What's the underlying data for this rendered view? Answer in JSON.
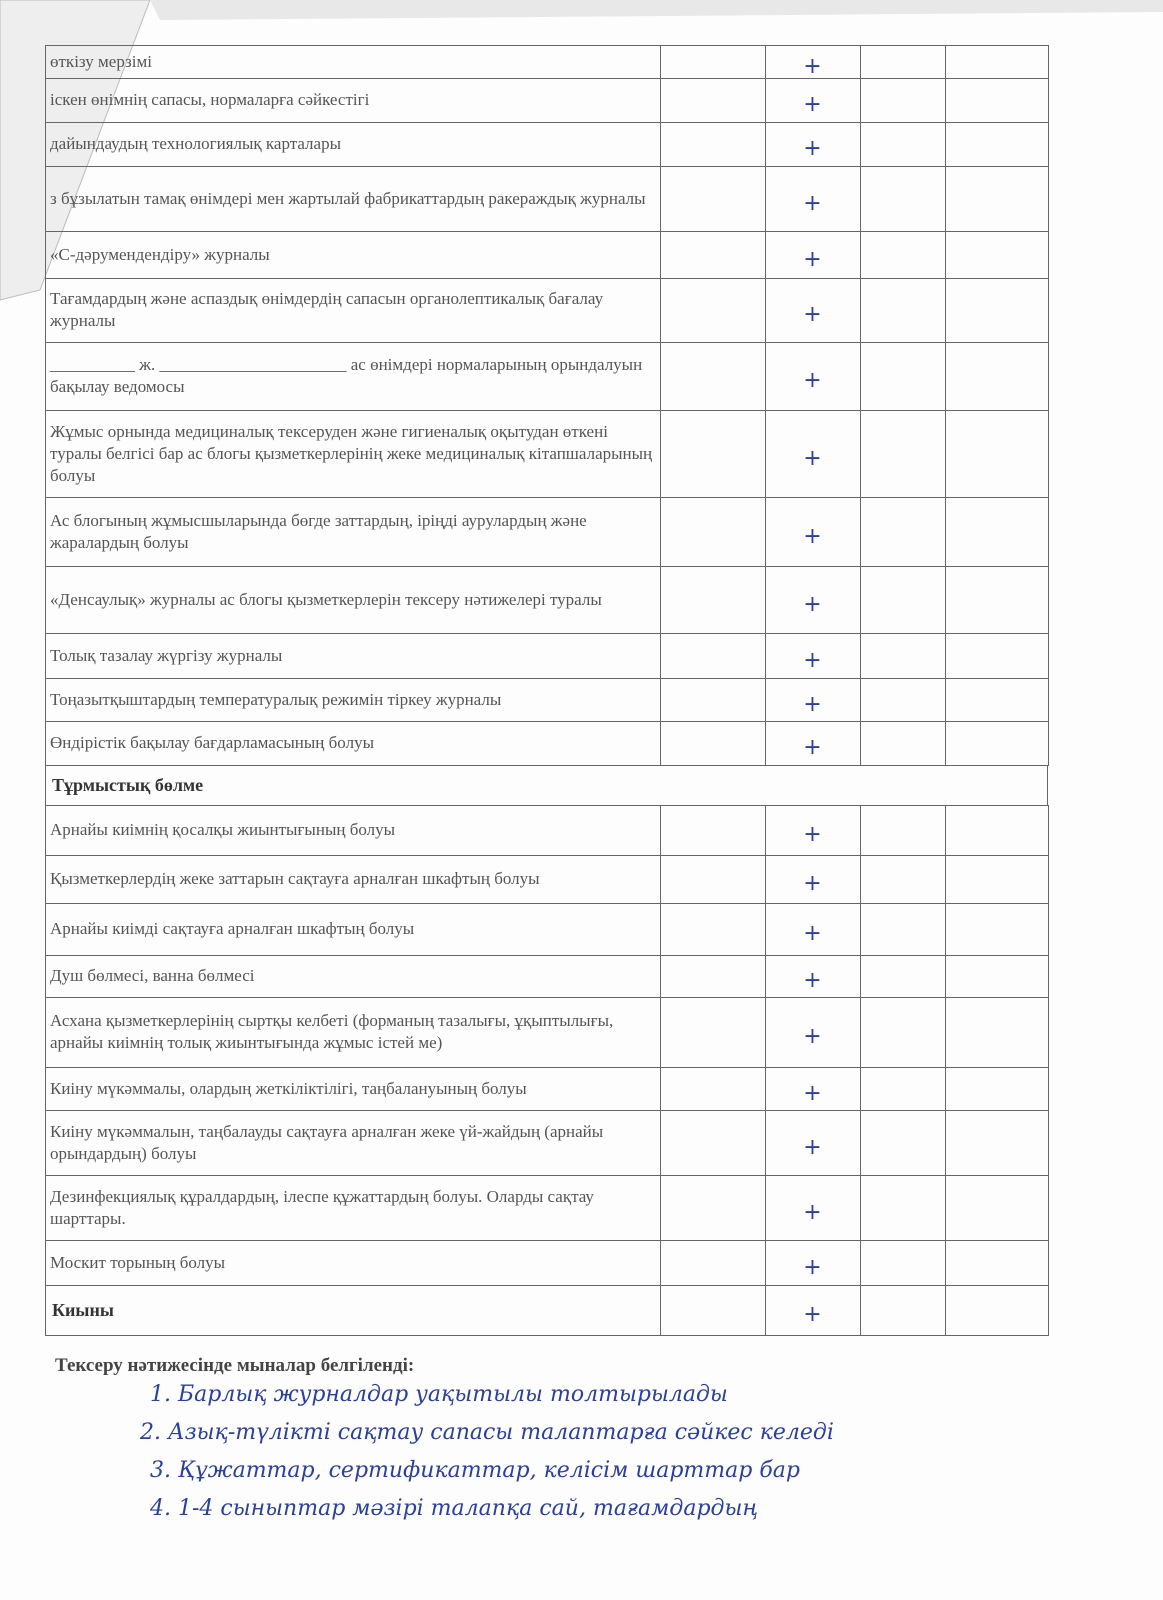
{
  "table": {
    "rows": [
      {
        "text": "өткізу мерзімі",
        "mark": "+"
      },
      {
        "text": "іскен өнімнің сапасы, нормаларға сәйкестігі",
        "mark": "+"
      },
      {
        "text": "дайындаудың технологиялық карталары",
        "mark": "+"
      },
      {
        "text": "з бұзылатын тамақ өнімдері мен жартылай фабрикаттардың ракераждық журналы",
        "mark": "+"
      },
      {
        "text": "«С-дәрумендендіру» журналы",
        "mark": "+"
      },
      {
        "text": "Тағамдардың және аспаздық өнімдердің сапасын органолептикалық бағалау журналы",
        "mark": "+"
      },
      {
        "text": "__________ ж. ______________________ ас өнімдері нормаларының орындалуын бақылау ведомосы",
        "mark": "+"
      },
      {
        "text": "Жұмыс орнында медициналық тексеруден және гигиеналық оқытудан өткені туралы белгісі бар ас блогы қызметкерлерінің жеке медициналық кітапшаларының болуы",
        "mark": "+"
      },
      {
        "text": "Ас блогының жұмысшыларында бөгде заттардың, іріңді аурулардың және жаралардың болуы",
        "mark": "+"
      },
      {
        "text": "«Денсаулық» журналы ас блогы қызметкерлерін тексеру нәтижелері туралы",
        "mark": "+"
      },
      {
        "text": "Толық тазалау жүргізу журналы",
        "mark": "+"
      },
      {
        "text": "Тоңазытқыштардың температуралық режимін тіркеу журналы",
        "mark": "+"
      },
      {
        "text": "Өндірістік бақылау бағдарламасының болуы",
        "mark": "+"
      },
      {
        "section": "Тұрмыстық бөлме"
      },
      {
        "text": "Арнайы киімнің қосалқы жиынтығының болуы",
        "mark": "+"
      },
      {
        "text": "Қызметкерлердің жеке заттарын сақтауға арналған шкафтың болуы",
        "mark": "+"
      },
      {
        "text": "Арнайы киімді сақтауға арналған шкафтың болуы",
        "mark": "+"
      },
      {
        "text": "Душ бөлмесі, ванна бөлмесі",
        "mark": "+"
      },
      {
        "text": "Асхана қызметкерлерінің сыртқы келбеті (форманың тазалығы, ұқыптылығы, арнайы киімнің толық жиынтығында жұмыс істей ме)",
        "mark": "+"
      },
      {
        "text": "Киіну мүкәммалы, олардың жеткіліктілігі, таңбалануының болуы",
        "mark": "+"
      },
      {
        "text": "Киіну мүкәммалын, таңбалауды сақтауға арналған жеке үй-жайдың (арнайы орындардың) болуы",
        "mark": "+"
      },
      {
        "text": "Дезинфекциялық құралдардың, ілеспе құжаттардың болуы. Оларды сақтау шарттары.",
        "mark": "+"
      },
      {
        "text": "Москит торының болуы",
        "mark": "+"
      },
      {
        "bold": "Киыны",
        "mark": "+"
      }
    ]
  },
  "footer": {
    "title": "Тексеру нәтижесінде мыналар белгіленді:",
    "notes": [
      "1. Барлық журналдар уақытылы толтырылады",
      "2. Азық-түлікті сақтау сапасы талаптарға сәйкес келеді",
      "3. Құжаттар, сертификаттар, келісім шарттар бар",
      "4. 1-4 сыныптар мәзірі талапқа сай, тағамдардың"
    ]
  }
}
